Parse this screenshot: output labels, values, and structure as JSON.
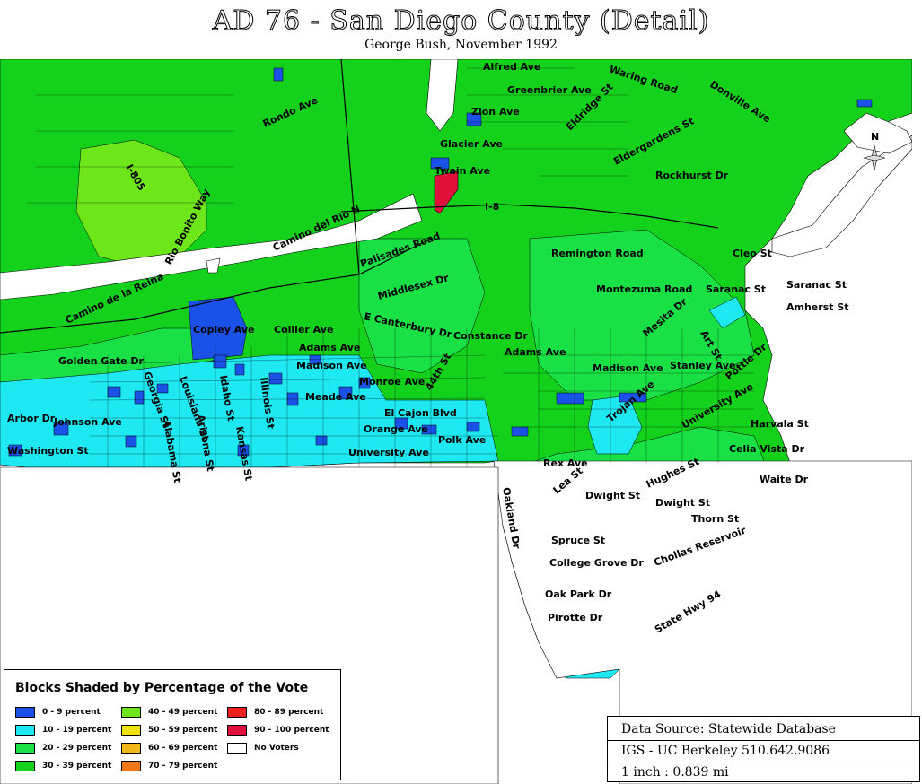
{
  "title": "AD 76 - San Diego County (Detail)",
  "subtitle": "George Bush, November 1992",
  "colors": {
    "0-9": "#1a52e8",
    "10-19": "#1ee8f2",
    "20-29": "#19e045",
    "30-39": "#14d21c",
    "40-49": "#6de61a",
    "no_voters": "#ffffff",
    "80-89": "#ee2020",
    "90-100": "#e0103c",
    "50-59": "#f0e010",
    "60-69": "#f0b818",
    "70-79": "#f07818"
  },
  "roads": [
    "Alfred Ave",
    "Greenbrier Ave",
    "Waring Road",
    "Donville Ave",
    "Zion Ave",
    "Eldridge St",
    "Glacier Ave",
    "Eldergardens St",
    "Twain Ave",
    "Rockhurst Dr",
    "I-8",
    "Rondo Ave",
    "I-805",
    "Rio Bonito Way",
    "Camino del Rio N",
    "Palisades Road",
    "Remington Road",
    "Cleo St",
    "Saranac St",
    "Montezuma Road",
    "Saranac St",
    "Amherst St",
    "Middlesex Dr",
    "Camino de la Reina",
    "Copley Ave",
    "E Canterbury Dr",
    "Collier Ave",
    "Constance Dr",
    "Mesita Dr",
    "Art St",
    "Adams Ave",
    "Adams Ave",
    "Golden Gate Dr",
    "Madison Ave",
    "Madison Ave",
    "Stanley Ave",
    "Pottle Dr",
    "Monroe Ave",
    "44th St",
    "Meade Ave",
    "Georgia St",
    "Louisiana St",
    "Idaho St",
    "Illinois St",
    "El Cajon Blvd",
    "Trojan Ave",
    "University Ave",
    "Harvala St",
    "Arbor Dr",
    "Johnson Ave",
    "Alabama St",
    "Arizona St",
    "Kansas St",
    "Orange Ave",
    "Polk Ave",
    "Celia Vista Dr",
    "Washington St",
    "University Ave",
    "Rex Ave",
    "Hughes St",
    "Waite Dr",
    "Oakland Dr",
    "Lea St",
    "Dwight St",
    "Dwight St",
    "Thorn St",
    "Spruce St",
    "College Grove Dr",
    "Chollas Reservoir",
    "Oak Park Dr",
    "State Hwy 94",
    "Pirotte Dr"
  ],
  "north_label": "N",
  "legend": {
    "title": "Blocks Shaded by Percentage of the Vote",
    "items": [
      {
        "label": "0 - 9 percent",
        "color": "#1a52e8"
      },
      {
        "label": "10 - 19 percent",
        "color": "#1ee8f2"
      },
      {
        "label": "20 - 29 percent",
        "color": "#19e045"
      },
      {
        "label": "30 - 39 percent",
        "color": "#14d21c"
      },
      {
        "label": "40 - 49 percent",
        "color": "#6de61a"
      },
      {
        "label": "50 - 59 percent",
        "color": "#f0e010"
      },
      {
        "label": "60 - 69 percent",
        "color": "#f0b818"
      },
      {
        "label": "70 - 79 percent",
        "color": "#f07818"
      },
      {
        "label": "80 - 89 percent",
        "color": "#ee2020"
      },
      {
        "label": "90 - 100 percent",
        "color": "#e0103c"
      },
      {
        "label": "No Voters",
        "color": "#ffffff"
      }
    ]
  },
  "source": {
    "line1": "Data Source: Statewide Database",
    "line2": "IGS - UC Berkeley 510.642.9086",
    "line3": "1 inch : 0.839 mi"
  }
}
